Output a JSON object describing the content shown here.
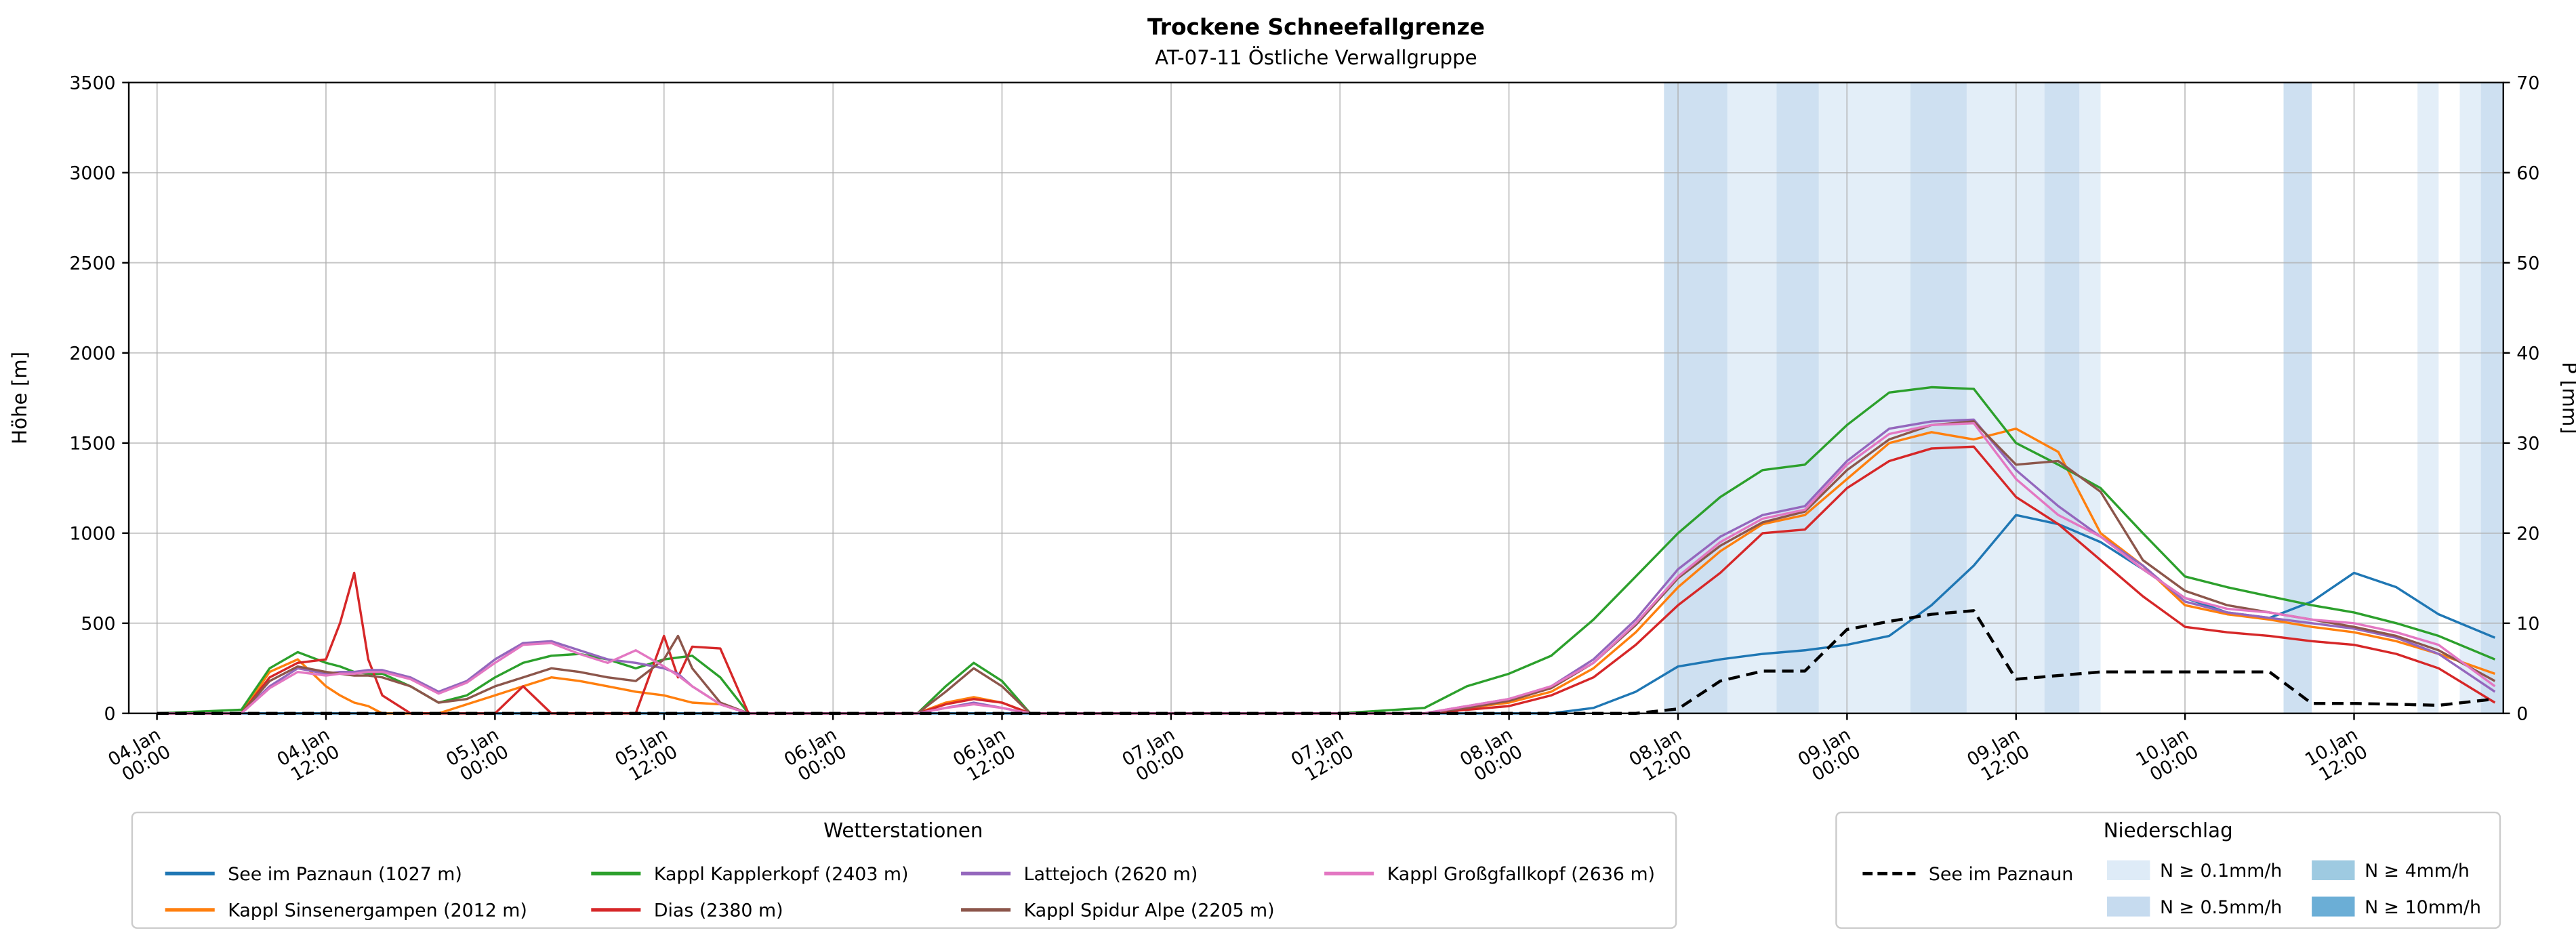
{
  "chart_data": {
    "type": "line",
    "title": "Trockene Schneefallgrenze",
    "subtitle": "AT-07-11 Östliche Verwallgruppe",
    "ylabel_left": "Höhe [m]",
    "ylabel_right": "P [mm]",
    "ylim_left": [
      0,
      3500
    ],
    "ylim_right": [
      0,
      70
    ],
    "yticks_left": [
      0,
      500,
      1000,
      1500,
      2000,
      2500,
      3000,
      3500
    ],
    "yticks_right": [
      0,
      10,
      20,
      30,
      40,
      50,
      60,
      70
    ],
    "grid": true,
    "x_unit": "hours since 04 Jan 00:00",
    "xlim_hours": [
      -2,
      166.6
    ],
    "xticks": [
      {
        "hour": 0,
        "l1": "04.Jan",
        "l2": "00:00"
      },
      {
        "hour": 12,
        "l1": "04.Jan",
        "l2": "12:00"
      },
      {
        "hour": 24,
        "l1": "05.Jan",
        "l2": "00:00"
      },
      {
        "hour": 36,
        "l1": "05.Jan",
        "l2": "12:00"
      },
      {
        "hour": 48,
        "l1": "06.Jan",
        "l2": "00:00"
      },
      {
        "hour": 60,
        "l1": "06.Jan",
        "l2": "12:00"
      },
      {
        "hour": 72,
        "l1": "07.Jan",
        "l2": "00:00"
      },
      {
        "hour": 84,
        "l1": "07.Jan",
        "l2": "12:00"
      },
      {
        "hour": 96,
        "l1": "08.Jan",
        "l2": "00:00"
      },
      {
        "hour": 108,
        "l1": "08.Jan",
        "l2": "12:00"
      },
      {
        "hour": 120,
        "l1": "09.Jan",
        "l2": "00:00"
      },
      {
        "hour": 132,
        "l1": "09.Jan",
        "l2": "12:00"
      },
      {
        "hour": 144,
        "l1": "10.Jan",
        "l2": "00:00"
      },
      {
        "hour": 156,
        "l1": "10.Jan",
        "l2": "12:00"
      }
    ],
    "x_hours": [
      0,
      6,
      8,
      10,
      12,
      13,
      14,
      15,
      16,
      18,
      20,
      22,
      24,
      26,
      28,
      30,
      32,
      34,
      36,
      37,
      38,
      40,
      42,
      48,
      54,
      56,
      58,
      60,
      62,
      72,
      84,
      90,
      93,
      96,
      99,
      102,
      105,
      108,
      111,
      114,
      117,
      120,
      123,
      126,
      129,
      132,
      135,
      138,
      141,
      144,
      147,
      150,
      153,
      156,
      159,
      162,
      166
    ],
    "series": [
      {
        "name": "See im Paznaun (1027 m)",
        "color": "#1f77b4",
        "axis": "left",
        "style": "solid",
        "values": [
          0,
          0,
          0,
          0,
          0,
          0,
          0,
          0,
          0,
          0,
          0,
          0,
          0,
          0,
          0,
          0,
          0,
          0,
          0,
          0,
          0,
          0,
          0,
          0,
          0,
          0,
          0,
          0,
          0,
          0,
          0,
          0,
          0,
          0,
          0,
          30,
          120,
          260,
          300,
          330,
          350,
          380,
          430,
          600,
          820,
          1100,
          1050,
          950,
          800,
          640,
          560,
          530,
          620,
          780,
          700,
          550,
          420
        ]
      },
      {
        "name": "Kappl Sinsenergampen (2012 m)",
        "color": "#ff7f0e",
        "axis": "left",
        "style": "solid",
        "values": [
          0,
          0,
          230,
          300,
          150,
          100,
          60,
          40,
          0,
          0,
          0,
          50,
          100,
          150,
          200,
          180,
          150,
          120,
          100,
          80,
          60,
          50,
          0,
          0,
          0,
          60,
          90,
          60,
          0,
          0,
          0,
          0,
          30,
          60,
          120,
          250,
          450,
          700,
          900,
          1050,
          1100,
          1300,
          1500,
          1560,
          1520,
          1580,
          1450,
          1000,
          820,
          600,
          550,
          520,
          480,
          450,
          400,
          330,
          220
        ]
      },
      {
        "name": "Kappl Kapplerkopf (2403 m)",
        "color": "#2ca02c",
        "axis": "left",
        "style": "solid",
        "values": [
          0,
          20,
          250,
          340,
          280,
          260,
          230,
          220,
          220,
          150,
          60,
          100,
          200,
          280,
          320,
          330,
          300,
          250,
          300,
          310,
          320,
          200,
          0,
          0,
          0,
          150,
          280,
          180,
          0,
          0,
          0,
          30,
          150,
          220,
          320,
          520,
          760,
          1000,
          1200,
          1350,
          1380,
          1600,
          1780,
          1810,
          1800,
          1500,
          1380,
          1250,
          1000,
          760,
          700,
          650,
          600,
          560,
          500,
          430,
          300
        ]
      },
      {
        "name": "Dias (2380 m)",
        "color": "#d62728",
        "axis": "left",
        "style": "solid",
        "values": [
          0,
          0,
          200,
          280,
          300,
          500,
          780,
          300,
          100,
          0,
          0,
          0,
          0,
          150,
          0,
          0,
          0,
          0,
          430,
          200,
          370,
          360,
          0,
          0,
          0,
          50,
          80,
          60,
          0,
          0,
          0,
          0,
          20,
          40,
          100,
          200,
          380,
          600,
          780,
          1000,
          1020,
          1250,
          1400,
          1470,
          1480,
          1200,
          1050,
          850,
          650,
          480,
          450,
          430,
          400,
          380,
          330,
          250,
          60
        ]
      },
      {
        "name": "Lattejoch (2620 m)",
        "color": "#9467bd",
        "axis": "left",
        "style": "solid",
        "values": [
          0,
          0,
          150,
          250,
          220,
          230,
          230,
          240,
          240,
          200,
          120,
          180,
          300,
          390,
          400,
          350,
          300,
          280,
          250,
          220,
          150,
          50,
          0,
          0,
          0,
          30,
          60,
          30,
          0,
          0,
          0,
          0,
          40,
          80,
          150,
          300,
          520,
          800,
          980,
          1100,
          1150,
          1400,
          1580,
          1620,
          1630,
          1350,
          1150,
          980,
          820,
          620,
          560,
          530,
          500,
          470,
          420,
          330,
          120
        ]
      },
      {
        "name": "Kappl Spidur Alpe (2205 m)",
        "color": "#8c564b",
        "axis": "left",
        "style": "solid",
        "values": [
          0,
          0,
          180,
          260,
          230,
          220,
          210,
          210,
          200,
          150,
          60,
          80,
          150,
          200,
          250,
          230,
          200,
          180,
          300,
          430,
          250,
          60,
          0,
          0,
          0,
          120,
          250,
          150,
          0,
          0,
          0,
          0,
          30,
          70,
          140,
          280,
          490,
          750,
          930,
          1060,
          1120,
          1350,
          1520,
          1600,
          1620,
          1380,
          1400,
          1230,
          850,
          680,
          600,
          560,
          520,
          480,
          430,
          350,
          180
        ]
      },
      {
        "name": "Kappl Großgfallkopf (2636 m)",
        "color": "#e377c2",
        "axis": "left",
        "style": "solid",
        "values": [
          0,
          0,
          140,
          230,
          210,
          220,
          220,
          230,
          230,
          190,
          110,
          170,
          280,
          380,
          390,
          330,
          280,
          350,
          260,
          210,
          150,
          50,
          0,
          0,
          0,
          30,
          50,
          30,
          0,
          0,
          0,
          0,
          40,
          80,
          150,
          280,
          500,
          760,
          950,
          1080,
          1130,
          1380,
          1550,
          1600,
          1610,
          1300,
          1100,
          980,
          800,
          640,
          580,
          560,
          520,
          500,
          450,
          380,
          150
        ]
      }
    ],
    "precip_line": {
      "name": "See im Paznaun",
      "color": "#000000",
      "axis": "right",
      "style": "dashed",
      "values": [
        0,
        0,
        0,
        0,
        0,
        0,
        0,
        0,
        0,
        0,
        0,
        0,
        0,
        0,
        0,
        0,
        0,
        0,
        0,
        0,
        0,
        0,
        0,
        0,
        0,
        0,
        0,
        0,
        0,
        0,
        0,
        0,
        0,
        0,
        0,
        0,
        0,
        0.5,
        3.6,
        4.7,
        4.7,
        9.3,
        10.2,
        11.0,
        11.4,
        3.8,
        4.2,
        4.6,
        4.6,
        4.6,
        4.6,
        4.6,
        1.1,
        1.1,
        1.0,
        0.9,
        1.6
      ]
    },
    "precip_bands": {
      "levels": [
        {
          "label": "N ≥ 0.1mm/h",
          "color": "#deebf7"
        },
        {
          "label": "N ≥ 0.5mm/h",
          "color": "#c6dbef"
        },
        {
          "label": "N ≥ 4mm/h",
          "color": "#9ecae1"
        },
        {
          "label": "N ≥ 10mm/h",
          "color": "#6baed6"
        }
      ],
      "bands": [
        {
          "x0": 107,
          "x1": 111.5,
          "level": 1
        },
        {
          "x0": 111.5,
          "x1": 115,
          "level": 0
        },
        {
          "x0": 115,
          "x1": 118,
          "level": 1
        },
        {
          "x0": 118,
          "x1": 124.5,
          "level": 0
        },
        {
          "x0": 124.5,
          "x1": 128.5,
          "level": 1
        },
        {
          "x0": 128.5,
          "x1": 134,
          "level": 0
        },
        {
          "x0": 134,
          "x1": 136.5,
          "level": 1
        },
        {
          "x0": 136.5,
          "x1": 138,
          "level": 0
        },
        {
          "x0": 151,
          "x1": 153,
          "level": 1
        },
        {
          "x0": 160.5,
          "x1": 162,
          "level": 0
        },
        {
          "x0": 163.5,
          "x1": 165,
          "level": 0
        },
        {
          "x0": 165,
          "x1": 166.6,
          "level": 1
        }
      ]
    },
    "legend_left": {
      "title": "Wetterstationen"
    },
    "legend_right": {
      "title": "Niederschlag"
    }
  }
}
